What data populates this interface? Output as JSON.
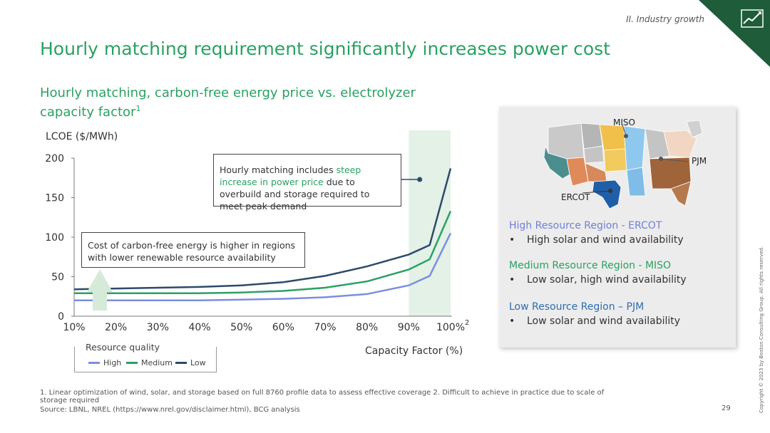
{
  "header": {
    "section": "II. Industry growth",
    "title": "Hourly matching requirement significantly increases power cost",
    "subtitle": "Hourly matching, carbon-free energy price vs. electrolyzer capacity factor",
    "subtitle_sup": "1"
  },
  "chart_data": {
    "type": "line",
    "ylabel": "LCOE ($/MWh)",
    "xlabel": "Capacity Factor (%)",
    "x": [
      10,
      20,
      30,
      40,
      50,
      60,
      70,
      80,
      90,
      95,
      100
    ],
    "x_ticks": [
      "10%",
      "20%",
      "30%",
      "40%",
      "50%",
      "60%",
      "70%",
      "80%",
      "90%",
      "100%"
    ],
    "x_last_tick_sup": "2",
    "ylim": [
      0,
      200
    ],
    "y_ticks": [
      "0",
      "50",
      "100",
      "150",
      "200"
    ],
    "highlight_band": [
      90,
      100
    ],
    "series": [
      {
        "name": "High",
        "color": "#7b8ee0",
        "values": [
          20,
          20,
          20,
          20,
          21,
          22,
          24,
          28,
          39,
          51,
          105
        ]
      },
      {
        "name": "Medium",
        "color": "#2aa163",
        "values": [
          29,
          29,
          29,
          29,
          30,
          32,
          36,
          44,
          59,
          72,
          133
        ]
      },
      {
        "name": "Low",
        "color": "#2e4a6b",
        "values": [
          34,
          35,
          36,
          37,
          39,
          43,
          51,
          63,
          78,
          90,
          187
        ]
      }
    ]
  },
  "callouts": {
    "top_pre": "Hourly matching includes ",
    "top_highlight": "steep increase in power price",
    "top_post": " due to overbuild and storage required to meet peak demand",
    "left": "Cost of carbon-free energy is higher in regions with lower renewable resource availability"
  },
  "legend": {
    "title": "Resource quality",
    "items": [
      "High",
      "Medium",
      "Low"
    ]
  },
  "panel": {
    "map_labels": {
      "miso": "MISO",
      "pjm": "PJM",
      "ercot": "ERCOT"
    },
    "regions": [
      {
        "heading": "High Resource Region - ERCOT",
        "color": "#6f7fd6",
        "bullet": "High solar and wind availability"
      },
      {
        "heading": "Medium Resource Region - MISO",
        "color": "#2aa163",
        "bullet": "Low solar, high wind availability"
      },
      {
        "heading": "Low Resource Region – PJM",
        "color": "#2e6eb0",
        "bullet": "Low solar and wind availability"
      }
    ]
  },
  "footer": {
    "footnote": "1. Linear optimization of wind, solar, and storage based on full 8760 profile data to assess effective coverage  2. Difficult to achieve in practice due to scale of storage required",
    "source": "Source: LBNL, NREL (https://www.nrel.gov/disclaimer.html), BCG analysis",
    "page": "29",
    "copyright": "Copyright © 2023 by Boston Consulting Group. All rights reserved."
  }
}
